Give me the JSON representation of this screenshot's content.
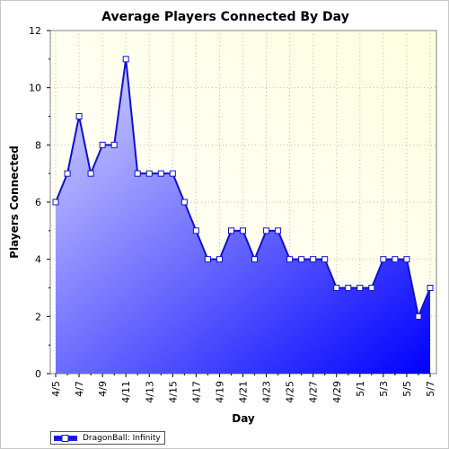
{
  "chart_data": {
    "type": "area",
    "title": "Average Players Connected By Day",
    "xlabel": "Day",
    "ylabel": "Players Connected",
    "ylim": [
      0,
      12
    ],
    "yticks": [
      0,
      2,
      4,
      6,
      8,
      10,
      12
    ],
    "x": [
      "4/5",
      "4/6",
      "4/7",
      "4/8",
      "4/9",
      "4/10",
      "4/11",
      "4/12",
      "4/13",
      "4/14",
      "4/15",
      "4/16",
      "4/17",
      "4/18",
      "4/19",
      "4/20",
      "4/21",
      "4/22",
      "4/23",
      "4/24",
      "4/25",
      "4/26",
      "4/27",
      "4/28",
      "4/29",
      "4/30",
      "5/1",
      "5/2",
      "5/3",
      "5/4",
      "5/5",
      "5/6",
      "5/7"
    ],
    "xtick_labels": [
      "4/5",
      "4/7",
      "4/9",
      "4/11",
      "4/13",
      "4/15",
      "4/17",
      "4/19",
      "4/21",
      "4/23",
      "4/25",
      "4/27",
      "4/29",
      "5/1",
      "5/3",
      "5/5",
      "5/7"
    ],
    "series": [
      {
        "name": "DragonBall: Infinity",
        "values": [
          6,
          7,
          9,
          7,
          8,
          8,
          11,
          7,
          7,
          7,
          7,
          6,
          5,
          4,
          4,
          5,
          5,
          4,
          5,
          5,
          4,
          4,
          4,
          4,
          3,
          3,
          3,
          3,
          4,
          4,
          4,
          2,
          3
        ]
      }
    ],
    "grid": true,
    "legend_position": "bottom-left",
    "colors": {
      "line": "#1010d0",
      "fill_top": "#d8d8ff",
      "fill_bottom": "#0000ff",
      "plot_bg_top": "#ffffe0",
      "plot_bg_bottom": "#ffffff"
    }
  }
}
